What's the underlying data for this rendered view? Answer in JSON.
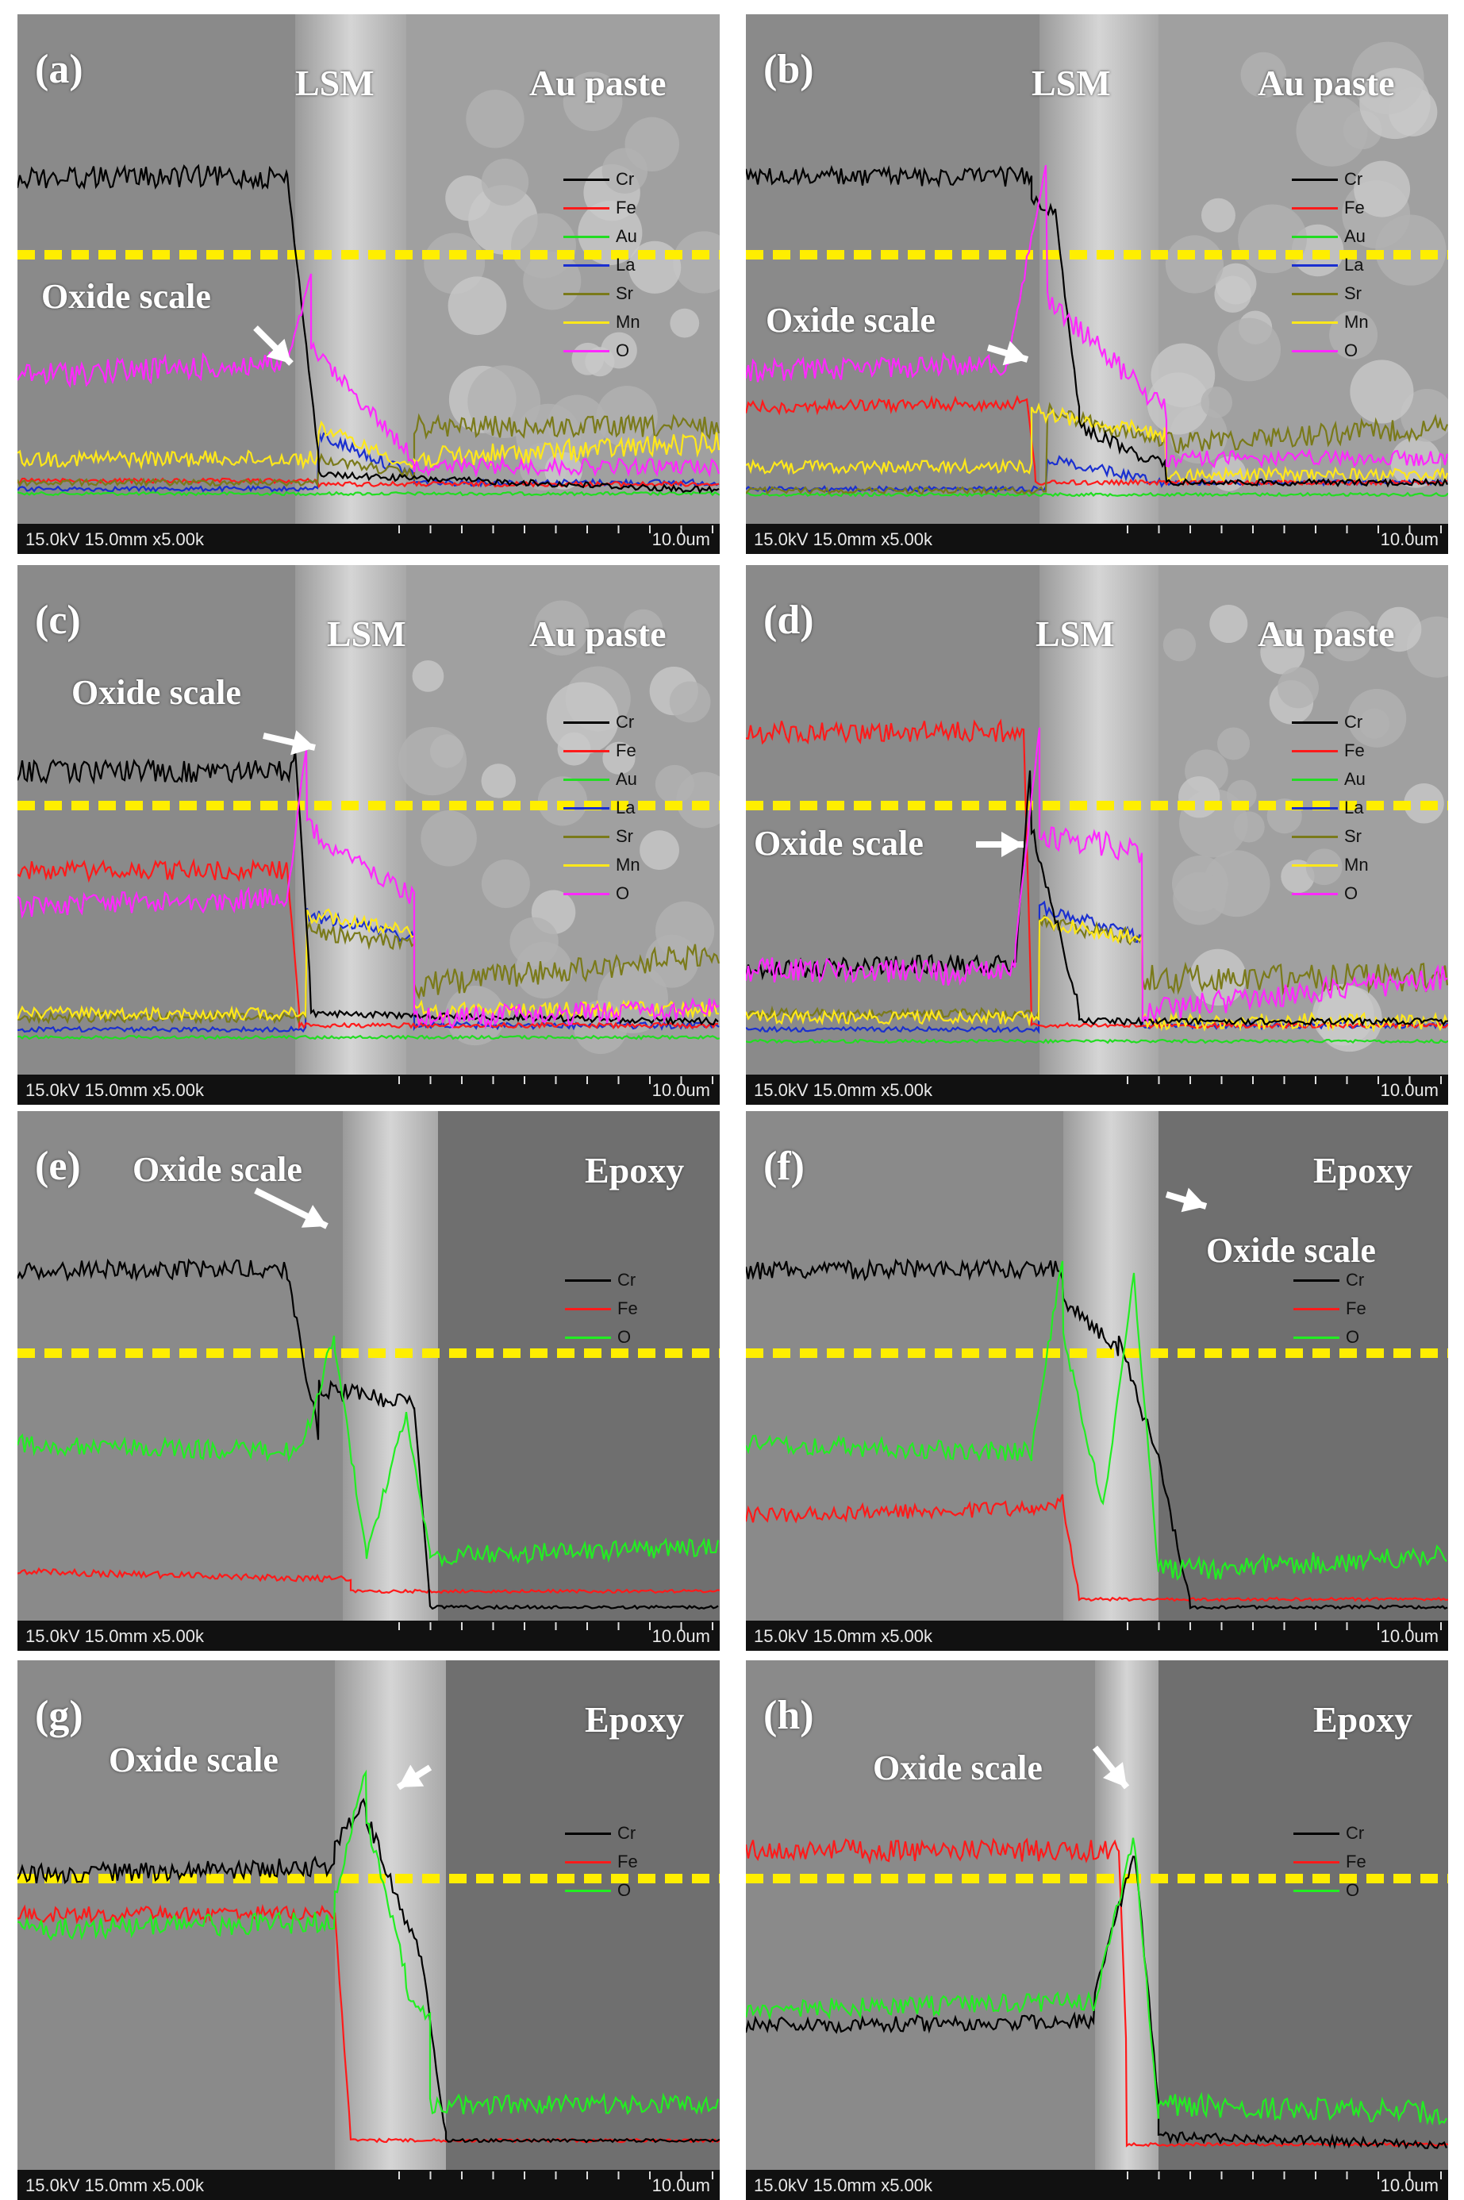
{
  "figure": {
    "panels": [
      {
        "id": "a",
        "letter": "(a)",
        "region_left": "LSM",
        "region_right": "Au paste",
        "annotation": "Oxide scale",
        "legend": [
          "Cr",
          "Fe",
          "Au",
          "La",
          "Sr",
          "Mn",
          "O"
        ]
      },
      {
        "id": "b",
        "letter": "(b)",
        "region_left": "LSM",
        "region_right": "Au paste",
        "annotation": "Oxide scale",
        "legend": [
          "Cr",
          "Fe",
          "Au",
          "La",
          "Sr",
          "Mn",
          "O"
        ]
      },
      {
        "id": "c",
        "letter": "(c)",
        "region_left": "LSM",
        "region_right": "Au paste",
        "annotation": "Oxide scale",
        "legend": [
          "Cr",
          "Fe",
          "Au",
          "La",
          "Sr",
          "Mn",
          "O"
        ]
      },
      {
        "id": "d",
        "letter": "(d)",
        "region_left": "LSM",
        "region_right": "Au paste",
        "annotation": "Oxide scale",
        "legend": [
          "Cr",
          "Fe",
          "Au",
          "La",
          "Sr",
          "Mn",
          "O"
        ]
      },
      {
        "id": "e",
        "letter": "(e)",
        "region_left": "",
        "region_right": "Epoxy",
        "annotation": "Oxide scale",
        "legend": [
          "Cr",
          "Fe",
          "O"
        ]
      },
      {
        "id": "f",
        "letter": "(f)",
        "region_left": "",
        "region_right": "Epoxy",
        "annotation": "Oxide scale",
        "legend": [
          "Cr",
          "Fe",
          "O"
        ]
      },
      {
        "id": "g",
        "letter": "(g)",
        "region_left": "",
        "region_right": "Epoxy",
        "annotation": "Oxide scale",
        "legend": [
          "Cr",
          "Fe",
          "O"
        ]
      },
      {
        "id": "h",
        "letter": "(h)",
        "region_left": "",
        "region_right": "Epoxy",
        "annotation": "Oxide scale",
        "legend": [
          "Cr",
          "Fe",
          "O"
        ]
      }
    ],
    "sem_info": "15.0kV 15.0mm x5.00k",
    "scale": "10.0um",
    "colors": {
      "Cr": "#000000",
      "Fe": "#ff1a1a",
      "Au": "#22dd22",
      "La": "#1a2fd0",
      "Sr": "#7a7a1a",
      "Mn": "#ffe81a",
      "O": "#ff28ff",
      "O_epoxy": "#22ee22",
      "guide_line": "#ffee00",
      "background_metal": "#8a8a8a",
      "background_paste": "#a0a0a0"
    }
  }
}
